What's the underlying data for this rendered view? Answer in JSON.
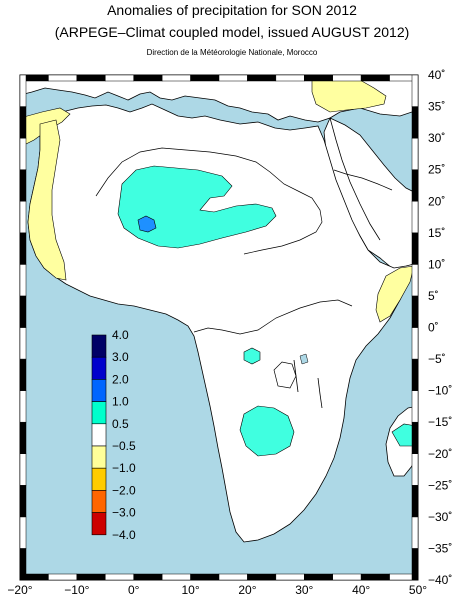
{
  "title": "Anomalies of precipitation for SON 2012",
  "subtitle": "(ARPEGE–Climat coupled model, issued AUGUST 2012)",
  "credit": "Direction de la Météorologie Nationale, Morocco",
  "axes": {
    "x_ticks": [
      "−20°",
      "−10°",
      "0°",
      "10°",
      "20°",
      "30°",
      "40°",
      "50°"
    ],
    "y_ticks": [
      "40˚",
      "35˚",
      "30˚",
      "25˚",
      "20˚",
      "15˚",
      "10˚",
      "5˚",
      "0˚",
      "−5˚",
      "−10˚",
      "−15˚",
      "−20˚",
      "−25˚",
      "−30˚",
      "−35˚",
      "−40˚"
    ],
    "lon_range": [
      -20,
      50
    ],
    "lat_range": [
      -40,
      40
    ]
  },
  "legend": {
    "labels": [
      "4.0",
      "3.0",
      "2.0",
      "1.0",
      "0.5",
      "−0.5",
      "−1.0",
      "−2.0",
      "−3.0",
      "−4.0"
    ],
    "colors": [
      "#000066",
      "#0000cc",
      "#0066ff",
      "#00ffcc",
      "#ffffff",
      "#ffff99",
      "#ffcc00",
      "#ff6600",
      "#cc0000",
      "#800000"
    ]
  },
  "colors": {
    "ocean": "#add8e6",
    "land": "#ffffff",
    "wet": "#40ffe0",
    "wetter": "#1e90ff",
    "dry": "#ffffa0"
  }
}
